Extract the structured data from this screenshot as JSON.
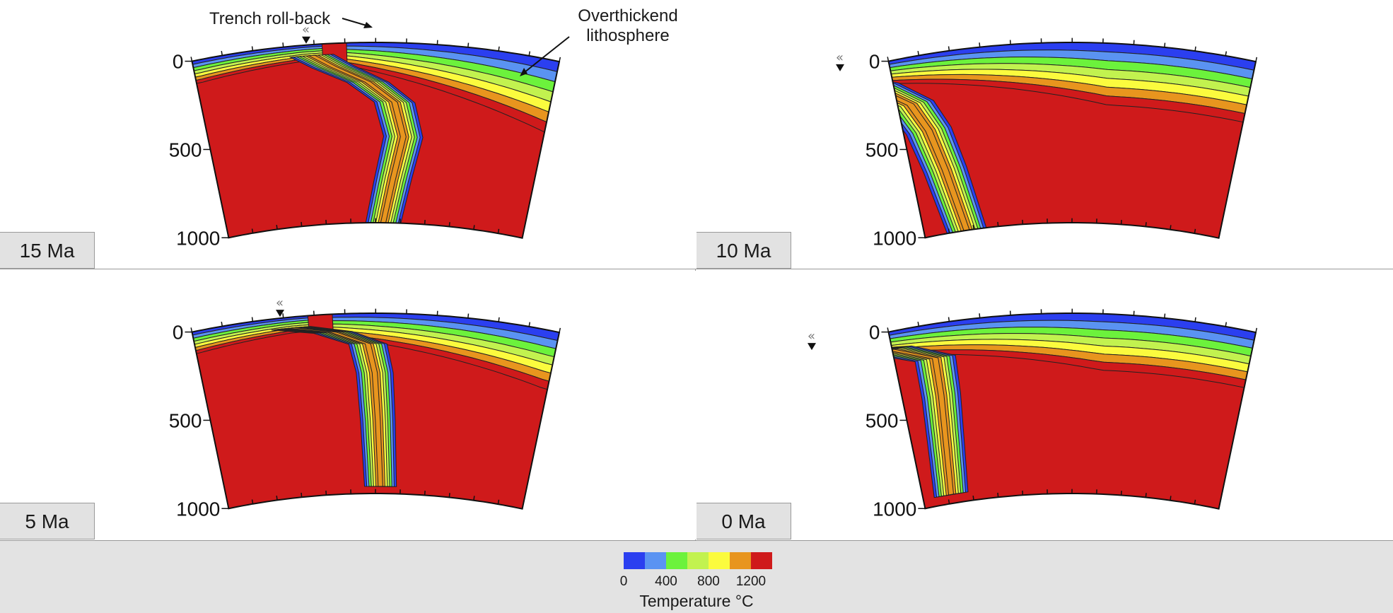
{
  "panels": [
    {
      "id": "tl",
      "age": "15 Ma",
      "state": 0
    },
    {
      "id": "tr",
      "age": "10 Ma",
      "state": 1
    },
    {
      "id": "bl",
      "age": "5 Ma",
      "state": 2
    },
    {
      "id": "br",
      "age": "0 Ma",
      "state": 3
    }
  ],
  "depth_ticks": [
    "0",
    "500",
    "1000"
  ],
  "annotations": {
    "trench": "Trench roll-back",
    "overthickened_line1": "Overthickend",
    "overthickened_line2": "lithosphere"
  },
  "colorbar": {
    "title": "Temperature °C",
    "ticks": [
      "0",
      "400",
      "800",
      "1200"
    ],
    "colors": [
      "#2b3ff0",
      "#5a93f2",
      "#6cf23c",
      "#c2f24f",
      "#fbfb3e",
      "#e8951e",
      "#cf1a1b"
    ]
  }
}
